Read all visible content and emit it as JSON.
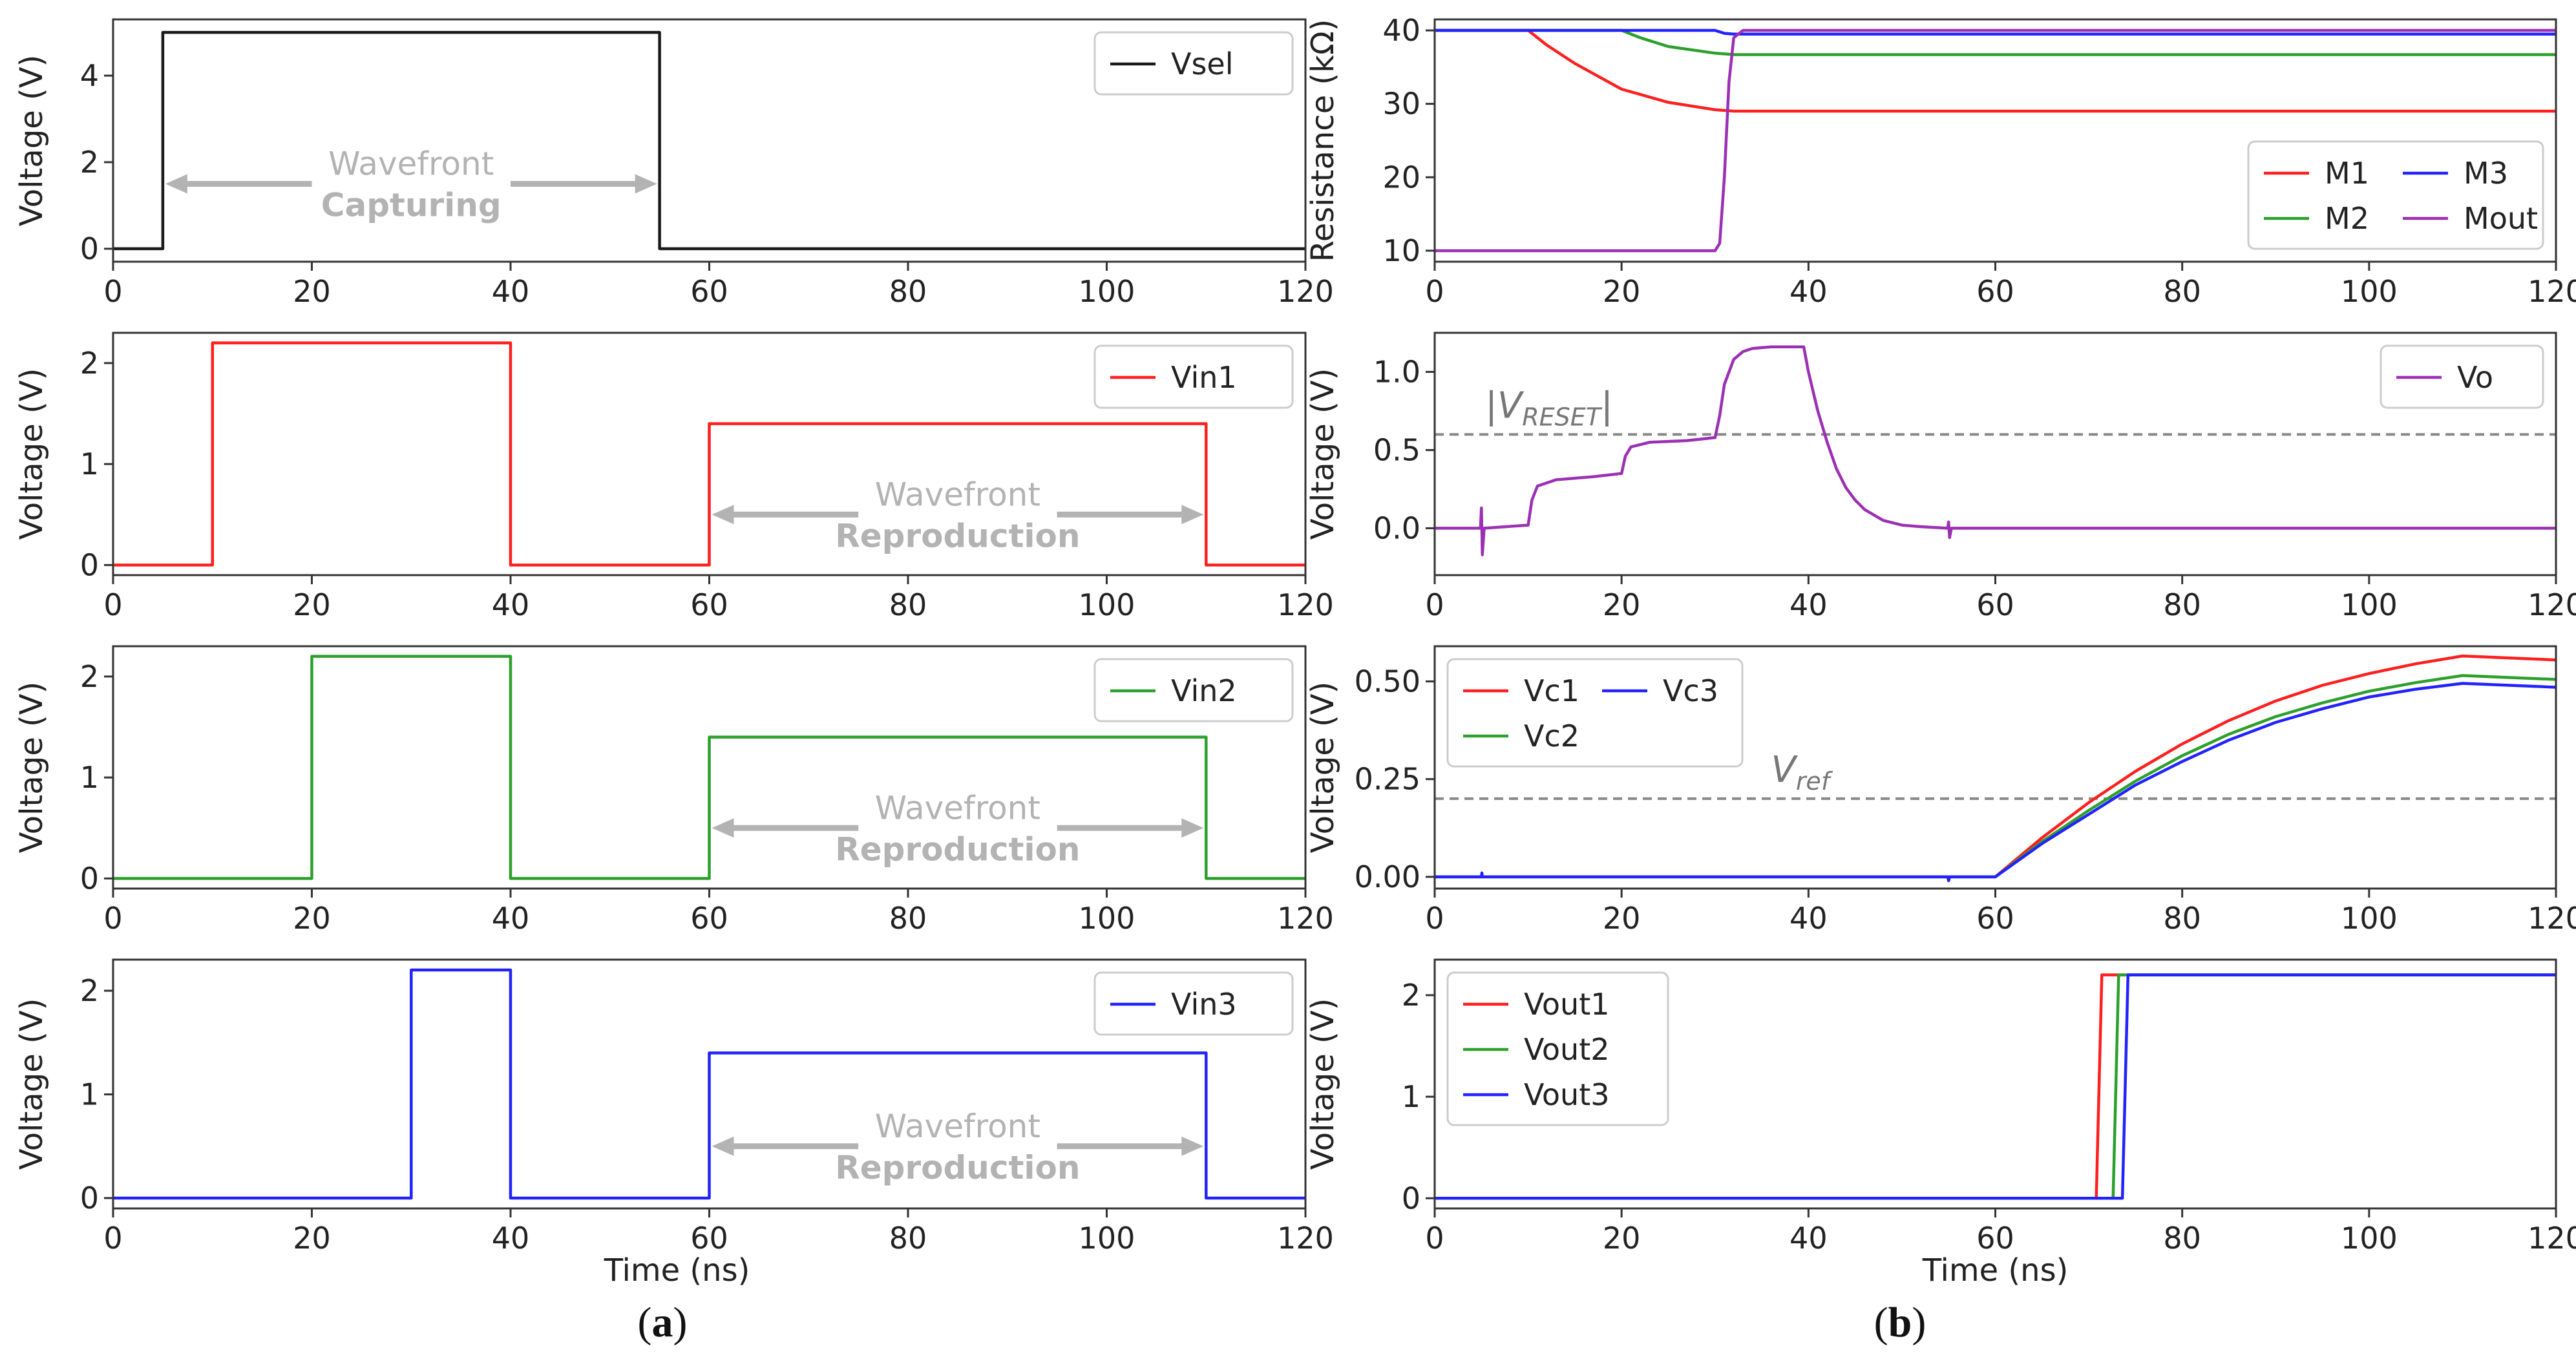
{
  "colors": {
    "black": "#1a1a1a",
    "red": "#ff1f1f",
    "green": "#2ca02c",
    "blue": "#2222ff",
    "purple": "#9b30b4",
    "annotation_gray": "#b3b3b3",
    "dashed_gray": "#888888"
  },
  "panel_labels": {
    "a_prefix": "(",
    "a": "a",
    "a_suffix": ")",
    "b_prefix": "(",
    "b": "b",
    "b_suffix": ")"
  },
  "chart_data": [
    {
      "id": "vsel",
      "type": "line",
      "column": "a",
      "row": 0,
      "ylabel": "Voltage (V)",
      "xlabel": "",
      "xlim": [
        0,
        120
      ],
      "ylim": [
        -0.3,
        5.3
      ],
      "xticks": [
        0,
        20,
        40,
        60,
        80,
        100,
        120
      ],
      "yticks": [
        0,
        2,
        4
      ],
      "xtick_labels": [
        "0",
        "20",
        "40",
        "60",
        "80",
        "100",
        "120"
      ],
      "ytick_labels": [
        "0",
        "2",
        "4"
      ],
      "legend_position": "top-right",
      "series": [
        {
          "name": "Vsel",
          "color": "#1a1a1a",
          "x": [
            0,
            5,
            5,
            55,
            55,
            120
          ],
          "y": [
            0,
            0,
            5,
            5,
            0,
            0
          ]
        }
      ],
      "annotations": [
        {
          "kind": "arrow-label",
          "line1": "Wavefront",
          "line2": "Capturing",
          "x_from": 5,
          "x_to": 55,
          "y": 1.5
        }
      ]
    },
    {
      "id": "vin1",
      "type": "line",
      "column": "a",
      "row": 1,
      "ylabel": "Voltage (V)",
      "xlabel": "",
      "xlim": [
        0,
        120
      ],
      "ylim": [
        -0.1,
        2.3
      ],
      "xticks": [
        0,
        20,
        40,
        60,
        80,
        100,
        120
      ],
      "yticks": [
        0,
        1,
        2
      ],
      "xtick_labels": [
        "0",
        "20",
        "40",
        "60",
        "80",
        "100",
        "120"
      ],
      "ytick_labels": [
        "0",
        "1",
        "2"
      ],
      "legend_position": "top-right",
      "series": [
        {
          "name": "Vin1",
          "color": "#ff1f1f",
          "x": [
            0,
            10,
            10,
            40,
            40,
            60,
            60,
            110,
            110,
            120
          ],
          "y": [
            0,
            0,
            2.2,
            2.2,
            0,
            0,
            1.4,
            1.4,
            0,
            0
          ]
        }
      ],
      "annotations": [
        {
          "kind": "arrow-label",
          "line1": "Wavefront",
          "line2": "Reproduction",
          "x_from": 60,
          "x_to": 110,
          "y": 0.5
        }
      ]
    },
    {
      "id": "vin2",
      "type": "line",
      "column": "a",
      "row": 2,
      "ylabel": "Voltage (V)",
      "xlabel": "",
      "xlim": [
        0,
        120
      ],
      "ylim": [
        -0.1,
        2.3
      ],
      "xticks": [
        0,
        20,
        40,
        60,
        80,
        100,
        120
      ],
      "yticks": [
        0,
        1,
        2
      ],
      "xtick_labels": [
        "0",
        "20",
        "40",
        "60",
        "80",
        "100",
        "120"
      ],
      "ytick_labels": [
        "0",
        "1",
        "2"
      ],
      "legend_position": "top-right",
      "series": [
        {
          "name": "Vin2",
          "color": "#2ca02c",
          "x": [
            0,
            20,
            20,
            40,
            40,
            60,
            60,
            110,
            110,
            120
          ],
          "y": [
            0,
            0,
            2.2,
            2.2,
            0,
            0,
            1.4,
            1.4,
            0,
            0
          ]
        }
      ],
      "annotations": [
        {
          "kind": "arrow-label",
          "line1": "Wavefront",
          "line2": "Reproduction",
          "x_from": 60,
          "x_to": 110,
          "y": 0.5
        }
      ]
    },
    {
      "id": "vin3",
      "type": "line",
      "column": "a",
      "row": 3,
      "ylabel": "Voltage (V)",
      "xlabel": "Time (ns)",
      "xlim": [
        0,
        120
      ],
      "ylim": [
        -0.1,
        2.3
      ],
      "xticks": [
        0,
        20,
        40,
        60,
        80,
        100,
        120
      ],
      "yticks": [
        0,
        1,
        2
      ],
      "xtick_labels": [
        "0",
        "20",
        "40",
        "60",
        "80",
        "100",
        "120"
      ],
      "ytick_labels": [
        "0",
        "1",
        "2"
      ],
      "legend_position": "top-right",
      "series": [
        {
          "name": "Vin3",
          "color": "#2222ff",
          "x": [
            0,
            30,
            30,
            40,
            40,
            60,
            60,
            110,
            110,
            120
          ],
          "y": [
            0,
            0,
            2.2,
            2.2,
            0,
            0,
            1.4,
            1.4,
            0,
            0
          ]
        }
      ],
      "annotations": [
        {
          "kind": "arrow-label",
          "line1": "Wavefront",
          "line2": "Reproduction",
          "x_from": 60,
          "x_to": 110,
          "y": 0.5
        }
      ]
    },
    {
      "id": "resistance",
      "type": "line",
      "column": "b",
      "row": 0,
      "ylabel": "Resistance (kΩ)",
      "xlabel": "",
      "xlim": [
        0,
        120
      ],
      "ylim": [
        8.5,
        41.5
      ],
      "xticks": [
        0,
        20,
        40,
        60,
        80,
        100,
        120
      ],
      "yticks": [
        10,
        20,
        30,
        40
      ],
      "xtick_labels": [
        "0",
        "20",
        "40",
        "60",
        "80",
        "100",
        "120"
      ],
      "ytick_labels": [
        "10",
        "20",
        "30",
        "40"
      ],
      "legend_position": "lower-right",
      "legend_columns": 2,
      "series": [
        {
          "name": "M1",
          "color": "#ff1f1f",
          "x": [
            0,
            10,
            12,
            15,
            20,
            25,
            30,
            32,
            120
          ],
          "y": [
            40,
            40,
            38,
            35.5,
            32,
            30.2,
            29.2,
            29,
            29
          ]
        },
        {
          "name": "M2",
          "color": "#2ca02c",
          "x": [
            0,
            20,
            22,
            25,
            30,
            32,
            120
          ],
          "y": [
            40,
            40,
            39,
            37.8,
            36.9,
            36.7,
            36.7
          ]
        },
        {
          "name": "M3",
          "color": "#2222ff",
          "x": [
            0,
            30,
            31,
            32,
            120
          ],
          "y": [
            40,
            40,
            39.6,
            39.5,
            39.5
          ]
        },
        {
          "name": "Mout",
          "color": "#9b30b4",
          "x": [
            0,
            30,
            30.5,
            31,
            31.5,
            32,
            33,
            120
          ],
          "y": [
            10,
            10,
            11,
            20,
            33,
            39,
            40,
            40
          ]
        }
      ]
    },
    {
      "id": "vo",
      "type": "line",
      "column": "b",
      "row": 1,
      "ylabel": "Voltage (V)",
      "xlabel": "",
      "xlim": [
        0,
        120
      ],
      "ylim": [
        -0.3,
        1.25
      ],
      "xticks": [
        0,
        20,
        40,
        60,
        80,
        100,
        120
      ],
      "yticks": [
        0.0,
        0.5,
        1.0
      ],
      "xtick_labels": [
        "0",
        "20",
        "40",
        "60",
        "80",
        "100",
        "120"
      ],
      "ytick_labels": [
        "0.0",
        "0.5",
        "1.0"
      ],
      "legend_position": "top-right",
      "reference_line": {
        "y": 0.6,
        "label_prefix": "|V",
        "label_sub": "RESET",
        "label_suffix": "|"
      },
      "series": [
        {
          "name": "Vo",
          "color": "#9b30b4",
          "x": [
            0,
            4.9,
            5,
            5.1,
            5.3,
            10,
            10.4,
            11,
            13,
            17,
            20,
            20.4,
            21,
            23,
            27,
            30,
            30.5,
            31,
            32,
            33,
            34,
            36,
            38,
            39.5,
            40,
            41,
            42,
            43,
            44,
            45,
            46,
            48,
            50,
            52,
            54.9,
            55,
            55.1,
            55.3,
            60,
            120
          ],
          "y": [
            0,
            0,
            0.13,
            -0.17,
            0,
            0.02,
            0.18,
            0.27,
            0.31,
            0.33,
            0.35,
            0.46,
            0.52,
            0.55,
            0.56,
            0.58,
            0.72,
            0.92,
            1.08,
            1.13,
            1.15,
            1.16,
            1.16,
            1.16,
            1.0,
            0.75,
            0.55,
            0.38,
            0.26,
            0.18,
            0.12,
            0.05,
            0.02,
            0.01,
            0,
            0.04,
            -0.06,
            0,
            0,
            0
          ]
        }
      ]
    },
    {
      "id": "vc",
      "type": "line",
      "column": "b",
      "row": 2,
      "ylabel": "Voltage (V)",
      "xlabel": "",
      "xlim": [
        0,
        120
      ],
      "ylim": [
        -0.03,
        0.59
      ],
      "xticks": [
        0,
        20,
        40,
        60,
        80,
        100,
        120
      ],
      "yticks": [
        0.0,
        0.25,
        0.5
      ],
      "xtick_labels": [
        "0",
        "20",
        "40",
        "60",
        "80",
        "100",
        "120"
      ],
      "ytick_labels": [
        "0.00",
        "0.25",
        "0.50"
      ],
      "legend_position": "top-left",
      "legend_columns": 2,
      "reference_line": {
        "y": 0.2,
        "label_prefix": "V",
        "label_sub": "ref",
        "label_suffix": ""
      },
      "series": [
        {
          "name": "Vc1",
          "color": "#ff1f1f",
          "x": [
            0,
            60,
            65,
            70,
            75,
            80,
            85,
            90,
            95,
            100,
            105,
            110,
            120
          ],
          "y": [
            0,
            0,
            0.1,
            0.19,
            0.27,
            0.34,
            0.4,
            0.45,
            0.49,
            0.52,
            0.545,
            0.565,
            0.555
          ]
        },
        {
          "name": "Vc2",
          "color": "#2ca02c",
          "x": [
            0,
            60,
            65,
            70,
            75,
            80,
            85,
            90,
            95,
            100,
            105,
            110,
            120
          ],
          "y": [
            0,
            0,
            0.09,
            0.17,
            0.245,
            0.31,
            0.365,
            0.41,
            0.445,
            0.475,
            0.497,
            0.515,
            0.505
          ]
        },
        {
          "name": "Vc3",
          "color": "#2222ff",
          "x": [
            0,
            5,
            5.05,
            5.1,
            54.9,
            55,
            55.1,
            60,
            65,
            70,
            75,
            80,
            85,
            90,
            95,
            100,
            105,
            110,
            120
          ],
          "y": [
            0,
            0,
            0.01,
            0,
            0,
            -0.01,
            0,
            0,
            0.085,
            0.16,
            0.235,
            0.295,
            0.35,
            0.395,
            0.43,
            0.46,
            0.48,
            0.495,
            0.485
          ]
        }
      ]
    },
    {
      "id": "vout",
      "type": "line",
      "column": "b",
      "row": 3,
      "ylabel": "Voltage (V)",
      "xlabel": "Time (ns)",
      "xlim": [
        0,
        120
      ],
      "ylim": [
        -0.1,
        2.35
      ],
      "xticks": [
        0,
        20,
        40,
        60,
        80,
        100,
        120
      ],
      "yticks": [
        0,
        1,
        2
      ],
      "xtick_labels": [
        "0",
        "20",
        "40",
        "60",
        "80",
        "100",
        "120"
      ],
      "ytick_labels": [
        "0",
        "1",
        "2"
      ],
      "legend_position": "top-left",
      "series": [
        {
          "name": "Vout1",
          "color": "#ff1f1f",
          "x": [
            0,
            70.8,
            71.4,
            120
          ],
          "y": [
            0,
            0,
            2.2,
            2.2
          ]
        },
        {
          "name": "Vout2",
          "color": "#2ca02c",
          "x": [
            0,
            72.6,
            73.2,
            120
          ],
          "y": [
            0,
            0,
            2.2,
            2.2
          ]
        },
        {
          "name": "Vout3",
          "color": "#2222ff",
          "x": [
            0,
            73.6,
            74.2,
            120
          ],
          "y": [
            0,
            0,
            2.2,
            2.2
          ]
        }
      ]
    }
  ]
}
